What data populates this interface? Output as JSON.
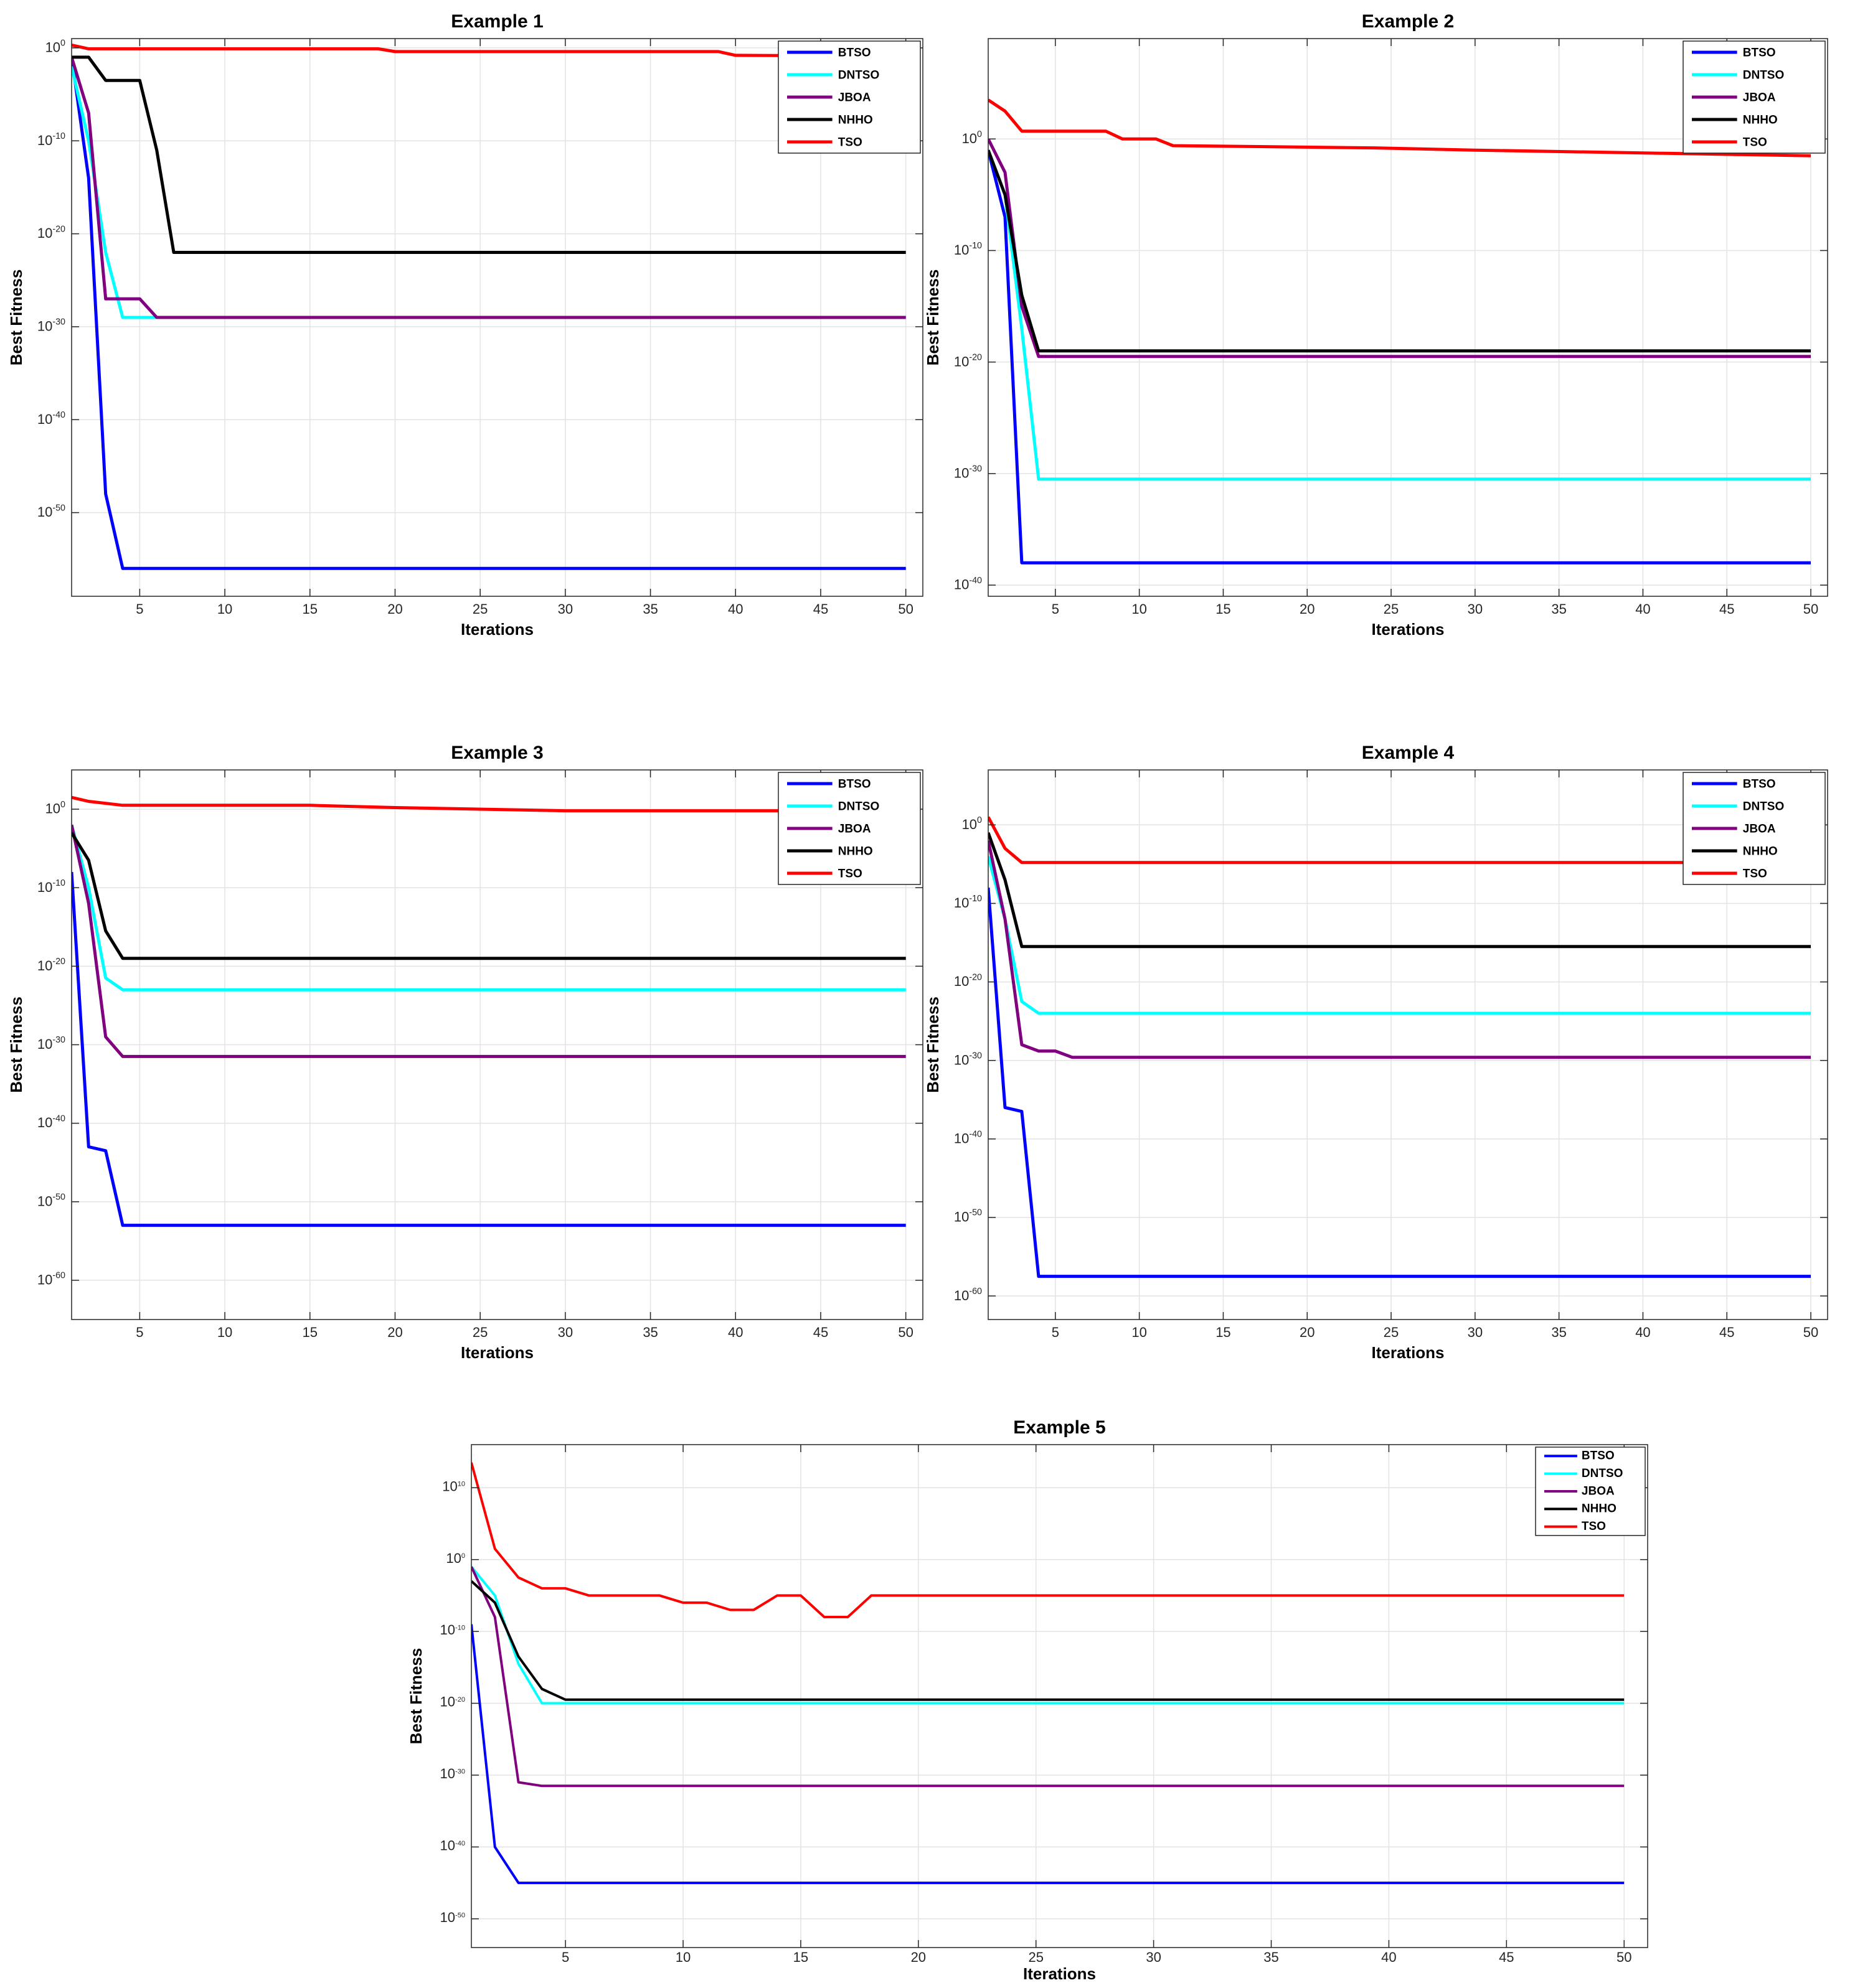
{
  "figure": {
    "legend_placement": "top-right",
    "grid": true,
    "yscale": "log"
  },
  "chart_data": [
    {
      "type": "line",
      "title": "Example 1",
      "xlabel": "Iterations",
      "ylabel": "Best Fitness",
      "xlim": [
        1,
        51
      ],
      "ylim": [
        -59,
        1
      ],
      "xticks": [
        5,
        10,
        15,
        20,
        25,
        30,
        35,
        40,
        45,
        50
      ],
      "yticks": [
        0,
        -10,
        -20,
        -30,
        -40,
        -50
      ],
      "ytick_labels": [
        {
          "base": "10",
          "exp": "0"
        },
        {
          "base": "10",
          "exp": "-10"
        },
        {
          "base": "10",
          "exp": "-20"
        },
        {
          "base": "10",
          "exp": "-30"
        },
        {
          "base": "10",
          "exp": "-40"
        },
        {
          "base": "10",
          "exp": "-50"
        }
      ],
      "legend": [
        "BTSO",
        "DNTSO",
        "JBOA",
        "NHHO",
        "TSO"
      ],
      "series": [
        {
          "name": "BTSO",
          "color": "#0000ff",
          "points": [
            [
              1,
              -1
            ],
            [
              2,
              -14
            ],
            [
              3,
              -48
            ],
            [
              4,
              -56
            ],
            [
              50,
              -56
            ]
          ]
        },
        {
          "name": "DNTSO",
          "color": "#00ffff",
          "points": [
            [
              1,
              -2
            ],
            [
              2,
              -10
            ],
            [
              3,
              -22
            ],
            [
              4,
              -29
            ],
            [
              50,
              -29
            ]
          ]
        },
        {
          "name": "JBOA",
          "color": "#800080",
          "points": [
            [
              1,
              -1
            ],
            [
              2,
              -7
            ],
            [
              3,
              -27
            ],
            [
              5,
              -27
            ],
            [
              6,
              -29
            ],
            [
              50,
              -29
            ]
          ]
        },
        {
          "name": "NHHO",
          "color": "#000000",
          "points": [
            [
              1,
              -1
            ],
            [
              2,
              -1
            ],
            [
              3,
              -3.5
            ],
            [
              5,
              -3.5
            ],
            [
              6,
              -11
            ],
            [
              7,
              -22
            ],
            [
              50,
              -22
            ]
          ]
        },
        {
          "name": "TSO",
          "color": "#ff0000",
          "points": [
            [
              1,
              0.3
            ],
            [
              2,
              -0.1
            ],
            [
              19,
              -0.1
            ],
            [
              20,
              -0.4
            ],
            [
              39,
              -0.4
            ],
            [
              40,
              -0.8
            ],
            [
              50,
              -0.9
            ]
          ]
        }
      ]
    },
    {
      "type": "line",
      "title": "Example 2",
      "xlabel": "Iterations",
      "ylabel": "Best Fitness",
      "xlim": [
        1,
        51
      ],
      "ylim": [
        -41,
        9
      ],
      "xticks": [
        5,
        10,
        15,
        20,
        25,
        30,
        35,
        40,
        45,
        50
      ],
      "yticks": [
        0,
        -10,
        -20,
        -30,
        -40
      ],
      "ytick_labels": [
        {
          "base": "10",
          "exp": "0"
        },
        {
          "base": "10",
          "exp": "-10"
        },
        {
          "base": "10",
          "exp": "-20"
        },
        {
          "base": "10",
          "exp": "-30"
        },
        {
          "base": "10",
          "exp": "-40"
        }
      ],
      "legend": [
        "BTSO",
        "DNTSO",
        "JBOA",
        "NHHO",
        "TSO"
      ],
      "series": [
        {
          "name": "BTSO",
          "color": "#0000ff",
          "points": [
            [
              1,
              -1
            ],
            [
              2,
              -7
            ],
            [
              3,
              -38
            ],
            [
              50,
              -38
            ]
          ]
        },
        {
          "name": "DNTSO",
          "color": "#00ffff",
          "points": [
            [
              1,
              -1
            ],
            [
              2,
              -5
            ],
            [
              3,
              -17
            ],
            [
              4,
              -30.5
            ],
            [
              50,
              -30.5
            ]
          ]
        },
        {
          "name": "JBOA",
          "color": "#800080",
          "points": [
            [
              1,
              0
            ],
            [
              2,
              -3
            ],
            [
              3,
              -15
            ],
            [
              4,
              -19.5
            ],
            [
              50,
              -19.5
            ]
          ]
        },
        {
          "name": "NHHO",
          "color": "#000000",
          "points": [
            [
              1,
              -1
            ],
            [
              2,
              -5
            ],
            [
              3,
              -14
            ],
            [
              4,
              -19
            ],
            [
              50,
              -19
            ]
          ]
        },
        {
          "name": "TSO",
          "color": "#ff0000",
          "points": [
            [
              1,
              3.5
            ],
            [
              2,
              2.5
            ],
            [
              3,
              0.7
            ],
            [
              8,
              0.7
            ],
            [
              9,
              0
            ],
            [
              11,
              0
            ],
            [
              12,
              -0.6
            ],
            [
              24,
              -0.8
            ],
            [
              30,
              -1
            ],
            [
              50,
              -1.5
            ]
          ]
        }
      ]
    },
    {
      "type": "line",
      "title": "Example 3",
      "xlabel": "Iterations",
      "ylabel": "Best Fitness",
      "xlim": [
        1,
        51
      ],
      "ylim": [
        -65,
        5
      ],
      "xticks": [
        5,
        10,
        15,
        20,
        25,
        30,
        35,
        40,
        45,
        50
      ],
      "yticks": [
        0,
        -10,
        -20,
        -30,
        -40,
        -50,
        -60
      ],
      "ytick_labels": [
        {
          "base": "10",
          "exp": "0"
        },
        {
          "base": "10",
          "exp": "-10"
        },
        {
          "base": "10",
          "exp": "-20"
        },
        {
          "base": "10",
          "exp": "-30"
        },
        {
          "base": "10",
          "exp": "-40"
        },
        {
          "base": "10",
          "exp": "-50"
        },
        {
          "base": "10",
          "exp": "-60"
        }
      ],
      "legend": [
        "BTSO",
        "DNTSO",
        "JBOA",
        "NHHO",
        "TSO"
      ],
      "series": [
        {
          "name": "BTSO",
          "color": "#0000ff",
          "points": [
            [
              1,
              -8
            ],
            [
              2,
              -43
            ],
            [
              3,
              -43.5
            ],
            [
              4,
              -53
            ],
            [
              50,
              -53
            ]
          ]
        },
        {
          "name": "DNTSO",
          "color": "#00ffff",
          "points": [
            [
              1,
              -2
            ],
            [
              2,
              -10
            ],
            [
              3,
              -21.5
            ],
            [
              4,
              -23
            ],
            [
              50,
              -23
            ]
          ]
        },
        {
          "name": "JBOA",
          "color": "#800080",
          "points": [
            [
              1,
              -2
            ],
            [
              2,
              -12
            ],
            [
              3,
              -29
            ],
            [
              4,
              -31.5
            ],
            [
              50,
              -31.5
            ]
          ]
        },
        {
          "name": "NHHO",
          "color": "#000000",
          "points": [
            [
              1,
              -3
            ],
            [
              2,
              -6.5
            ],
            [
              3,
              -15.5
            ],
            [
              4,
              -19
            ],
            [
              50,
              -19
            ]
          ]
        },
        {
          "name": "TSO",
          "color": "#ff0000",
          "points": [
            [
              1,
              1.5
            ],
            [
              2,
              1
            ],
            [
              4,
              0.5
            ],
            [
              15,
              0.5
            ],
            [
              20,
              0.2
            ],
            [
              30,
              -0.2
            ],
            [
              50,
              -0.2
            ]
          ]
        }
      ]
    },
    {
      "type": "line",
      "title": "Example 4",
      "xlabel": "Iterations",
      "ylabel": "Best Fitness",
      "xlim": [
        1,
        51
      ],
      "ylim": [
        -63,
        7
      ],
      "xticks": [
        5,
        10,
        15,
        20,
        25,
        30,
        35,
        40,
        45,
        50
      ],
      "yticks": [
        0,
        -10,
        -20,
        -30,
        -40,
        -50,
        -60
      ],
      "ytick_labels": [
        {
          "base": "10",
          "exp": "0"
        },
        {
          "base": "10",
          "exp": "-10"
        },
        {
          "base": "10",
          "exp": "-20"
        },
        {
          "base": "10",
          "exp": "-30"
        },
        {
          "base": "10",
          "exp": "-40"
        },
        {
          "base": "10",
          "exp": "-50"
        },
        {
          "base": "10",
          "exp": "-60"
        }
      ],
      "legend": [
        "BTSO",
        "DNTSO",
        "JBOA",
        "NHHO",
        "TSO"
      ],
      "series": [
        {
          "name": "BTSO",
          "color": "#0000ff",
          "points": [
            [
              1,
              -8
            ],
            [
              2,
              -36
            ],
            [
              3,
              -36.5
            ],
            [
              4,
              -57.5
            ],
            [
              50,
              -57.5
            ]
          ]
        },
        {
          "name": "DNTSO",
          "color": "#00ffff",
          "points": [
            [
              1,
              -4
            ],
            [
              2,
              -12
            ],
            [
              3,
              -22.5
            ],
            [
              4,
              -24
            ],
            [
              50,
              -24
            ]
          ]
        },
        {
          "name": "JBOA",
          "color": "#800080",
          "points": [
            [
              1,
              -2
            ],
            [
              2,
              -12
            ],
            [
              3,
              -28
            ],
            [
              4,
              -28.8
            ],
            [
              5,
              -28.8
            ],
            [
              6,
              -29.6
            ],
            [
              50,
              -29.6
            ]
          ]
        },
        {
          "name": "NHHO",
          "color": "#000000",
          "points": [
            [
              1,
              -1
            ],
            [
              2,
              -7
            ],
            [
              3,
              -15.5
            ],
            [
              50,
              -15.5
            ]
          ]
        },
        {
          "name": "TSO",
          "color": "#ff0000",
          "points": [
            [
              1,
              1
            ],
            [
              2,
              -3
            ],
            [
              3,
              -4.8
            ],
            [
              50,
              -4.8
            ]
          ]
        }
      ]
    },
    {
      "type": "line",
      "title": "Example 5",
      "xlabel": "Iterations",
      "ylabel": "Best Fitness",
      "xlim": [
        1,
        51
      ],
      "ylim": [
        -54,
        16
      ],
      "xticks": [
        5,
        10,
        15,
        20,
        25,
        30,
        35,
        40,
        45,
        50
      ],
      "yticks": [
        10,
        0,
        -10,
        -20,
        -30,
        -40,
        -50
      ],
      "ytick_labels": [
        {
          "base": "10",
          "exp": "10"
        },
        {
          "base": "10",
          "exp": "0"
        },
        {
          "base": "10",
          "exp": "-10"
        },
        {
          "base": "10",
          "exp": "-20"
        },
        {
          "base": "10",
          "exp": "-30"
        },
        {
          "base": "10",
          "exp": "-40"
        },
        {
          "base": "10",
          "exp": "-50"
        }
      ],
      "legend": [
        "BTSO",
        "DNTSO",
        "JBOA",
        "NHHO",
        "TSO"
      ],
      "series": [
        {
          "name": "BTSO",
          "color": "#0000ff",
          "points": [
            [
              1,
              -9
            ],
            [
              2,
              -40
            ],
            [
              3,
              -45
            ],
            [
              50,
              -45
            ]
          ]
        },
        {
          "name": "DNTSO",
          "color": "#00ffff",
          "points": [
            [
              1,
              -1
            ],
            [
              2,
              -5
            ],
            [
              3,
              -14.5
            ],
            [
              4,
              -20
            ],
            [
              50,
              -20
            ]
          ]
        },
        {
          "name": "JBOA",
          "color": "#800080",
          "points": [
            [
              1,
              -1
            ],
            [
              2,
              -8
            ],
            [
              3,
              -31
            ],
            [
              4,
              -31.5
            ],
            [
              50,
              -31.5
            ]
          ]
        },
        {
          "name": "NHHO",
          "color": "#000000",
          "points": [
            [
              1,
              -3
            ],
            [
              2,
              -6
            ],
            [
              3,
              -13.5
            ],
            [
              4,
              -18
            ],
            [
              5,
              -19.5
            ],
            [
              50,
              -19.5
            ]
          ]
        },
        {
          "name": "TSO",
          "color": "#ff0000",
          "points": [
            [
              1,
              13.5
            ],
            [
              2,
              1.5
            ],
            [
              3,
              -2.5
            ],
            [
              4,
              -4
            ],
            [
              5,
              -4
            ],
            [
              6,
              -5
            ],
            [
              9,
              -5
            ],
            [
              10,
              -6
            ],
            [
              11,
              -6
            ],
            [
              12,
              -7
            ],
            [
              13,
              -7
            ],
            [
              14,
              -5
            ],
            [
              15,
              -5
            ],
            [
              16,
              -8
            ],
            [
              17,
              -8
            ],
            [
              18,
              -5
            ],
            [
              50,
              -5
            ]
          ]
        }
      ]
    }
  ]
}
